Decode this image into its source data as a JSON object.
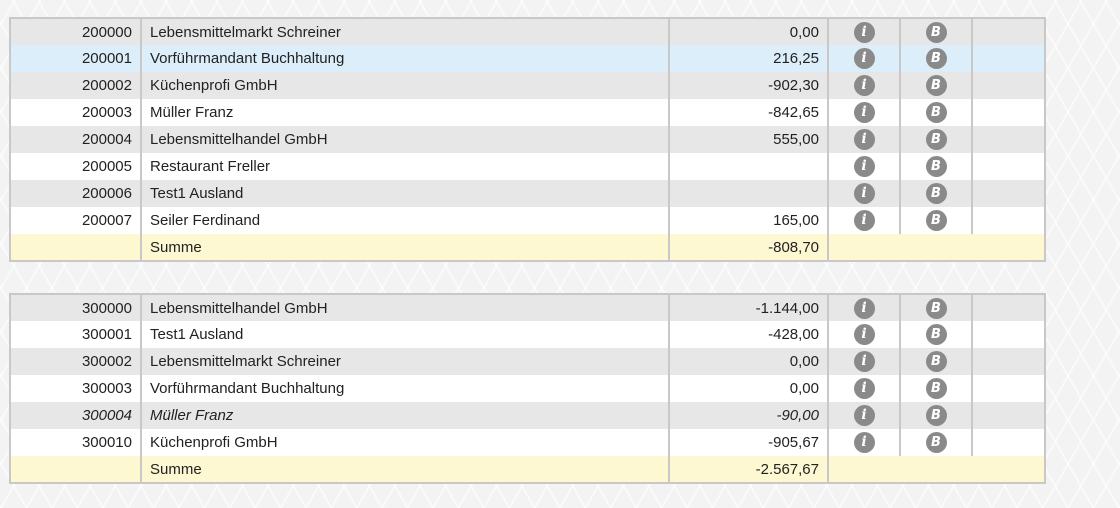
{
  "icons": {
    "info": "i",
    "booking": "B",
    "color": "#8a8a8a"
  },
  "table_200": {
    "rows": [
      {
        "number": "200000",
        "name": "Lebensmittelmarkt Schreiner",
        "amount": "0,00"
      },
      {
        "number": "200001",
        "name": "Vorführmandant Buchhaltung",
        "amount": "216,25"
      },
      {
        "number": "200002",
        "name": "Küchenprofi GmbH",
        "amount": "-902,30"
      },
      {
        "number": "200003",
        "name": "Müller Franz",
        "amount": "-842,65"
      },
      {
        "number": "200004",
        "name": "Lebensmittelhandel GmbH",
        "amount": "555,00"
      },
      {
        "number": "200005",
        "name": "Restaurant Freller",
        "amount": ""
      },
      {
        "number": "200006",
        "name": "Test1 Ausland",
        "amount": ""
      },
      {
        "number": "200007",
        "name": "Seiler Ferdinand",
        "amount": "165,00"
      }
    ],
    "sum_label": "Summe",
    "sum_amount": "-808,70"
  },
  "table_300": {
    "rows": [
      {
        "number": "300000",
        "name": "Lebensmittelhandel GmbH",
        "amount": "-1.144,00"
      },
      {
        "number": "300001",
        "name": "Test1 Ausland",
        "amount": "-428,00"
      },
      {
        "number": "300002",
        "name": "Lebensmittelmarkt Schreiner",
        "amount": "0,00"
      },
      {
        "number": "300003",
        "name": "Vorführmandant Buchhaltung",
        "amount": "0,00"
      },
      {
        "number": "300004",
        "name": "Müller Franz",
        "amount": "-90,00"
      },
      {
        "number": "300010",
        "name": "Küchenprofi GmbH",
        "amount": "-905,67"
      }
    ],
    "sum_label": "Summe",
    "sum_amount": "-2.567,67"
  }
}
